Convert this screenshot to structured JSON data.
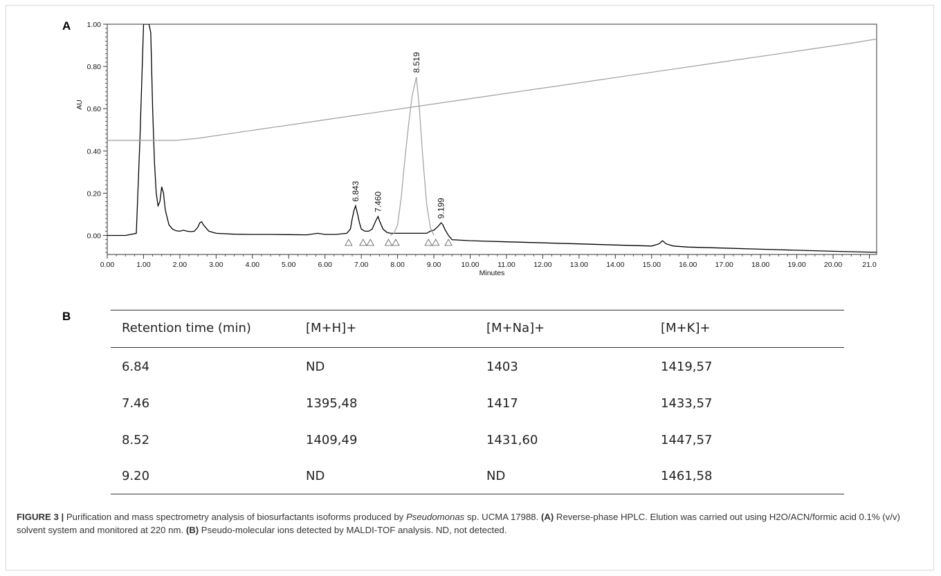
{
  "panel_a_label": "A",
  "panel_b_label": "B",
  "chart_data": {
    "type": "line",
    "xlabel": "Minutes",
    "ylabel": "AU",
    "xlim": [
      0,
      21.2
    ],
    "ylim": [
      -0.09,
      1.0
    ],
    "x_ticks": [
      "0.00",
      "1.00",
      "2.00",
      "3.00",
      "4.00",
      "5.00",
      "6.00",
      "7.00",
      "8.00",
      "9.00",
      "10.00",
      "11.00",
      "12.00",
      "13.00",
      "14.00",
      "15.00",
      "16.00",
      "17.00",
      "18.00",
      "19.00",
      "20.00",
      "21.0"
    ],
    "y_ticks": [
      "1.00",
      "0.80",
      "0.60",
      "0.40",
      "0.20",
      "0.00"
    ],
    "grid": false,
    "series": [
      {
        "role": "chromatogram",
        "color": "#000000",
        "x": [
          0,
          0.5,
          0.8,
          0.9,
          1.0,
          1.1,
          1.15,
          1.2,
          1.25,
          1.3,
          1.35,
          1.4,
          1.45,
          1.5,
          1.55,
          1.6,
          1.7,
          1.8,
          1.9,
          2.0,
          2.1,
          2.2,
          2.3,
          2.4,
          2.5,
          2.55,
          2.6,
          2.65,
          2.7,
          2.8,
          3.0,
          3.5,
          4.0,
          4.5,
          5.0,
          5.5,
          5.8,
          6.0,
          6.3,
          6.6,
          6.7,
          6.75,
          6.8,
          6.843,
          6.9,
          6.95,
          7.0,
          7.1,
          7.2,
          7.3,
          7.4,
          7.46,
          7.5,
          7.6,
          7.7,
          7.8,
          8.0,
          8.3,
          8.8,
          8.9,
          9.0,
          9.1,
          9.199,
          9.25,
          9.3,
          9.4,
          9.5,
          10.0,
          11.0,
          12.0,
          13.0,
          14.0,
          15.0,
          15.2,
          15.3,
          15.4,
          15.6,
          16.0,
          17.0,
          18.0,
          19.0,
          20.0,
          21.2
        ],
        "y": [
          0.0,
          0.0,
          0.01,
          0.45,
          1.0,
          1.0,
          1.0,
          0.96,
          0.6,
          0.35,
          0.2,
          0.14,
          0.16,
          0.23,
          0.2,
          0.12,
          0.05,
          0.03,
          0.022,
          0.02,
          0.025,
          0.02,
          0.018,
          0.02,
          0.04,
          0.06,
          0.065,
          0.05,
          0.04,
          0.02,
          0.01,
          0.006,
          0.005,
          0.005,
          0.004,
          0.003,
          0.01,
          0.005,
          0.005,
          0.01,
          0.03,
          0.08,
          0.12,
          0.14,
          0.1,
          0.06,
          0.03,
          0.02,
          0.02,
          0.03,
          0.07,
          0.09,
          0.07,
          0.03,
          0.015,
          0.01,
          0.01,
          0.01,
          0.01,
          0.02,
          0.025,
          0.04,
          0.06,
          0.05,
          0.03,
          0.0,
          -0.02,
          -0.025,
          -0.03,
          -0.035,
          -0.04,
          -0.045,
          -0.05,
          -0.04,
          -0.025,
          -0.04,
          -0.05,
          -0.055,
          -0.06,
          -0.065,
          -0.07,
          -0.075,
          -0.08
        ]
      },
      {
        "role": "main-peak",
        "color": "#9e9e9e",
        "x": [
          7.8,
          7.9,
          8.0,
          8.1,
          8.2,
          8.3,
          8.4,
          8.519,
          8.6,
          8.7,
          8.8,
          8.9,
          9.0
        ],
        "y": [
          0.0,
          0.01,
          0.05,
          0.18,
          0.36,
          0.52,
          0.66,
          0.75,
          0.6,
          0.36,
          0.15,
          0.04,
          0.0
        ]
      },
      {
        "role": "gradient",
        "color": "#9e9e9e",
        "x": [
          0,
          1.0,
          1.9,
          2.5,
          3.5,
          4.5,
          5.5,
          6.5,
          7.5,
          8.5,
          9.5,
          10.5,
          11.5,
          12.5,
          13.5,
          14.5,
          15.5,
          16.5,
          17.5,
          18.5,
          19.5,
          20.5,
          21.2
        ],
        "y": [
          0.45,
          0.45,
          0.45,
          0.46,
          0.485,
          0.51,
          0.535,
          0.56,
          0.585,
          0.61,
          0.635,
          0.66,
          0.685,
          0.71,
          0.735,
          0.76,
          0.785,
          0.81,
          0.835,
          0.86,
          0.885,
          0.91,
          0.93
        ]
      }
    ],
    "peak_labels": [
      {
        "x": 6.843,
        "y": 0.14,
        "text": "6.843"
      },
      {
        "x": 7.46,
        "y": 0.09,
        "text": "7.460"
      },
      {
        "x": 8.519,
        "y": 0.75,
        "text": "8.519"
      },
      {
        "x": 9.199,
        "y": 0.06,
        "text": "9.199"
      }
    ],
    "integration_markers_x": [
      6.65,
      7.05,
      7.25,
      7.75,
      7.95,
      8.85,
      9.05,
      9.4
    ]
  },
  "table": {
    "headers": [
      "Retention time (min)",
      "[M+H]+",
      "[M+Na]+",
      "[M+K]+"
    ],
    "rows": [
      [
        "6.84",
        "ND",
        "1403",
        "1419,57"
      ],
      [
        "7.46",
        "1395,48",
        "1417",
        "1433,57"
      ],
      [
        "8.52",
        "1409,49",
        "1431,60",
        "1447,57"
      ],
      [
        "9.20",
        "ND",
        "ND",
        "1461,58"
      ]
    ]
  },
  "caption": {
    "label": "FIGURE 3 |",
    "text1": " Purification and mass spectrometry analysis of biosurfactants isoforms produced by ",
    "italic": "Pseudomonas",
    "text2": " sp. UCMA 17988. ",
    "a_label": "(A)",
    "text3": " Reverse-phase HPLC. Elution was carried out using H2O/ACN/formic acid 0.1% (v/v) solvent system and monitored at 220 nm. ",
    "b_label": "(B)",
    "text4": " Pseudo-molecular ions detected by MALDI-TOF analysis. ND, not detected."
  }
}
